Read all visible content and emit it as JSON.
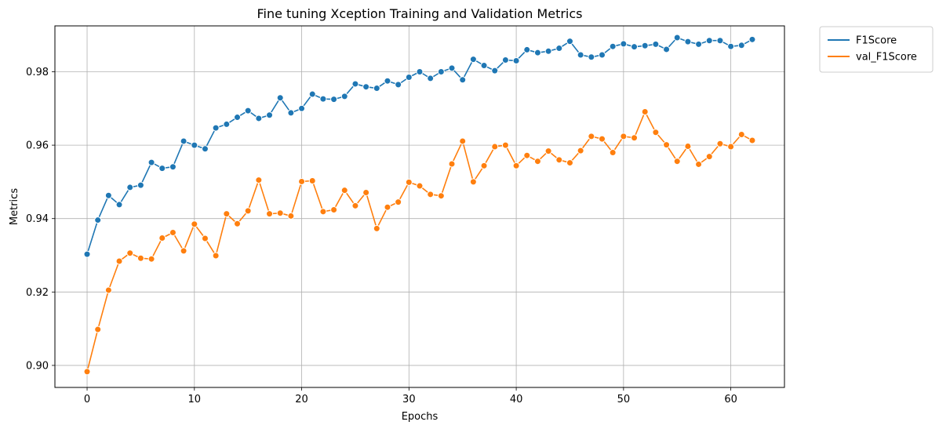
{
  "chart_data": {
    "type": "line",
    "title": "Fine tuning Xception Training and Validation Metrics",
    "xlabel": "Epochs",
    "ylabel": "Metrics",
    "xlim": [
      -3,
      65
    ],
    "ylim": [
      0.894,
      0.9925
    ],
    "x_ticks": [
      0,
      10,
      20,
      30,
      40,
      50,
      60
    ],
    "y_ticks": [
      0.9,
      0.92,
      0.94,
      0.96,
      0.98
    ],
    "x_tick_labels": [
      "0",
      "10",
      "20",
      "30",
      "40",
      "50",
      "60"
    ],
    "y_tick_labels": [
      "0.90",
      "0.92",
      "0.94",
      "0.96",
      "0.98"
    ],
    "grid": true,
    "legend_position": "outside-top-right",
    "x": [
      0,
      1,
      2,
      3,
      4,
      5,
      6,
      7,
      8,
      9,
      10,
      11,
      12,
      13,
      14,
      15,
      16,
      17,
      18,
      19,
      20,
      21,
      22,
      23,
      24,
      25,
      26,
      27,
      28,
      29,
      30,
      31,
      32,
      33,
      34,
      35,
      36,
      37,
      38,
      39,
      40,
      41,
      42,
      43,
      44,
      45,
      46,
      47,
      48,
      49,
      50,
      51,
      52,
      53,
      54,
      55,
      56,
      57,
      58,
      59,
      60,
      61,
      62
    ],
    "series": [
      {
        "name": "F1Score",
        "color": "#1f77b4",
        "values": [
          0.9303,
          0.9396,
          0.9463,
          0.9438,
          0.9485,
          0.9491,
          0.9553,
          0.9537,
          0.9541,
          0.9611,
          0.96,
          0.959,
          0.9647,
          0.9657,
          0.9676,
          0.9694,
          0.9673,
          0.9682,
          0.9729,
          0.9688,
          0.97,
          0.9739,
          0.9726,
          0.9725,
          0.9733,
          0.9767,
          0.9759,
          0.9755,
          0.9775,
          0.9765,
          0.9785,
          0.98,
          0.9782,
          0.98,
          0.981,
          0.9778,
          0.9834,
          0.9817,
          0.9803,
          0.9832,
          0.983,
          0.986,
          0.9852,
          0.9856,
          0.9864,
          0.9883,
          0.9846,
          0.984,
          0.9846,
          0.9869,
          0.9876,
          0.9868,
          0.9871,
          0.9875,
          0.9861,
          0.9893,
          0.9882,
          0.9875,
          0.9885,
          0.9885,
          0.9869,
          0.9872,
          0.9888
        ]
      },
      {
        "name": "val_F1Score",
        "color": "#ff7f0e",
        "values": [
          0.8983,
          0.9098,
          0.9205,
          0.9284,
          0.9306,
          0.9292,
          0.929,
          0.9347,
          0.9362,
          0.9312,
          0.9385,
          0.9346,
          0.9299,
          0.9413,
          0.9386,
          0.9421,
          0.9505,
          0.9413,
          0.9415,
          0.9407,
          0.9501,
          0.9503,
          0.9419,
          0.9424,
          0.9477,
          0.9435,
          0.9471,
          0.9373,
          0.9431,
          0.9445,
          0.9499,
          0.9489,
          0.9466,
          0.9462,
          0.9549,
          0.9611,
          0.95,
          0.9544,
          0.9596,
          0.96,
          0.9544,
          0.9572,
          0.9556,
          0.9584,
          0.956,
          0.9552,
          0.9585,
          0.9624,
          0.9617,
          0.958,
          0.9624,
          0.962,
          0.9691,
          0.9635,
          0.9601,
          0.9556,
          0.9597,
          0.9548,
          0.9569,
          0.9604,
          0.9596,
          0.9629,
          0.9613
        ]
      }
    ]
  }
}
